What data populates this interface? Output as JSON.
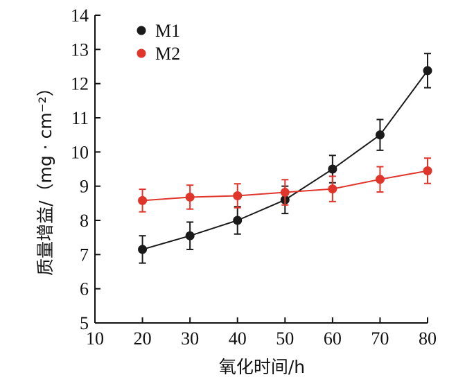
{
  "chart_data": {
    "type": "line",
    "x": [
      20,
      30,
      40,
      50,
      60,
      70,
      80
    ],
    "xlabel": "氧化时间/h",
    "ylabel": "质量增益/（mg · cm⁻²）",
    "xlim": [
      10,
      80
    ],
    "ylim": [
      5,
      14
    ],
    "xticks": [
      "10",
      "20",
      "30",
      "40",
      "50",
      "60",
      "70",
      "80"
    ],
    "yticks": [
      "5",
      "6",
      "7",
      "8",
      "9",
      "10",
      "11",
      "12",
      "13",
      "14"
    ],
    "grid": false,
    "legend_position": "top-left",
    "series": [
      {
        "name": "M1",
        "color": "#1a1a1a",
        "values": [
          7.15,
          7.55,
          8.0,
          8.6,
          9.5,
          10.5,
          12.38
        ],
        "errors": [
          0.4,
          0.4,
          0.4,
          0.4,
          0.4,
          0.45,
          0.5
        ]
      },
      {
        "name": "M2",
        "color": "#e0352b",
        "values": [
          8.58,
          8.68,
          8.72,
          8.82,
          8.92,
          9.2,
          9.45
        ],
        "errors": [
          0.33,
          0.35,
          0.35,
          0.37,
          0.37,
          0.37,
          0.37
        ]
      }
    ]
  }
}
